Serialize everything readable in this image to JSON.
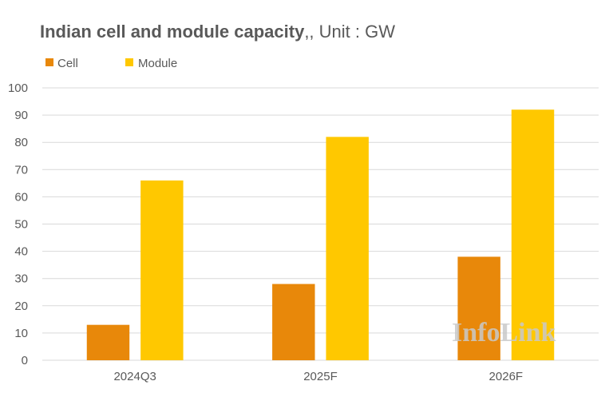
{
  "chart_data": {
    "type": "bar",
    "title": "Indian cell and module capacity",
    "subtitle": ",, Unit : GW",
    "categories": [
      "2024Q3",
      "2025F",
      "2026F"
    ],
    "series": [
      {
        "name": "Cell",
        "values": [
          13,
          28,
          38
        ],
        "color": "#e8880a"
      },
      {
        "name": "Module",
        "values": [
          66,
          82,
          92
        ],
        "color": "#ffc800"
      }
    ],
    "ylim": [
      0,
      100
    ],
    "yticks": [
      0,
      10,
      20,
      30,
      40,
      50,
      60,
      70,
      80,
      90,
      100
    ],
    "grid": true,
    "legend_position": "top-left"
  },
  "watermark": "InfoLink"
}
